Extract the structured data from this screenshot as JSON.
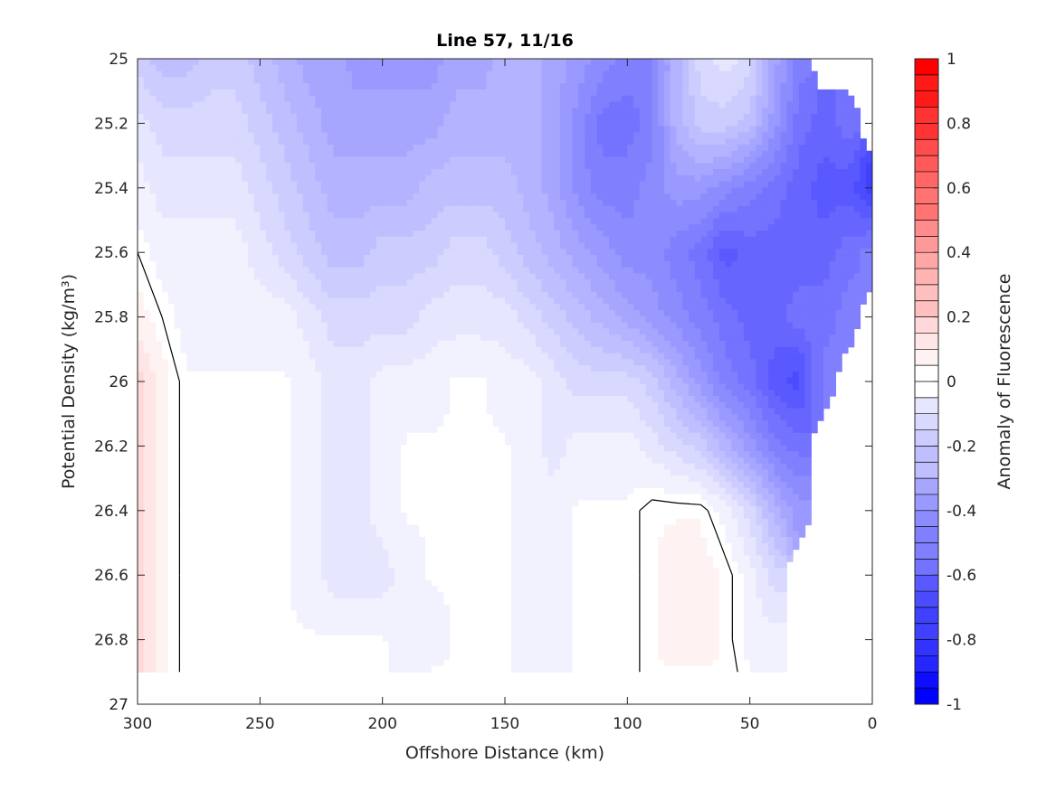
{
  "chart_data": {
    "type": "heatmap",
    "subtype": "filled-contour",
    "title": "Line 57, 11/16",
    "xlabel": "Offshore Distance (km)",
    "ylabel": "Potential Density (kg/m³)",
    "colorbar_label": "Anomaly of Fluorescence",
    "xlim": [
      300,
      0
    ],
    "x_reversed": true,
    "ylim": [
      27,
      25
    ],
    "y_reversed": true,
    "xticks": [
      300,
      250,
      200,
      150,
      100,
      50,
      0
    ],
    "yticks": [
      25,
      25.2,
      25.4,
      25.6,
      25.8,
      26,
      26.2,
      26.4,
      26.6,
      26.8,
      27
    ],
    "xtick_labels": [
      "300",
      "250",
      "200",
      "150",
      "100",
      "50",
      "0"
    ],
    "ytick_labels": [
      "25",
      "25.2",
      "25.4",
      "25.6",
      "25.8",
      "26",
      "26.2",
      "26.4",
      "26.6",
      "26.8",
      "27"
    ],
    "clim": [
      -1,
      1
    ],
    "colorbar_ticks": [
      1,
      0.8,
      0.6,
      0.4,
      0.2,
      0,
      -0.2,
      -0.4,
      -0.6,
      -0.8,
      -1
    ],
    "colorbar_tick_labels": [
      "1",
      "0.8",
      "0.6",
      "0.4",
      "0.2",
      "0",
      "-0.2",
      "-0.4",
      "-0.6",
      "-0.8",
      "-1"
    ],
    "colormap": "blue-white-red",
    "colors": {
      "negative": "#0000ff",
      "zero": "#ffffff",
      "positive": "#ff0000"
    },
    "contour_levels_step": 0.05,
    "zero_contour_color": "#000000",
    "x": [
      300,
      290,
      280,
      270,
      260,
      250,
      240,
      230,
      220,
      210,
      200,
      190,
      180,
      170,
      160,
      150,
      140,
      130,
      120,
      110,
      100,
      90,
      80,
      70,
      60,
      50,
      40,
      30,
      20,
      10,
      0
    ],
    "y": [
      25,
      25.2,
      25.4,
      25.6,
      25.8,
      26,
      26.2,
      26.4,
      26.6,
      26.8,
      26.9
    ],
    "z": [
      [
        -0.2,
        -0.25,
        -0.25,
        -0.2,
        -0.2,
        -0.25,
        -0.3,
        -0.35,
        -0.35,
        -0.4,
        -0.4,
        -0.4,
        -0.4,
        -0.35,
        -0.35,
        -0.3,
        -0.3,
        -0.35,
        -0.4,
        -0.45,
        -0.5,
        -0.5,
        -0.3,
        -0.15,
        -0.1,
        -0.15,
        -0.35,
        -0.5,
        null,
        null,
        null
      ],
      [
        -0.1,
        -0.15,
        -0.15,
        -0.15,
        -0.15,
        -0.2,
        -0.25,
        -0.3,
        -0.35,
        -0.35,
        -0.35,
        -0.35,
        -0.35,
        -0.3,
        -0.3,
        -0.3,
        -0.3,
        -0.35,
        -0.45,
        -0.55,
        -0.55,
        -0.5,
        -0.3,
        -0.2,
        -0.2,
        -0.25,
        -0.4,
        -0.55,
        -0.6,
        -0.55,
        null
      ],
      [
        -0.05,
        -0.1,
        -0.1,
        -0.1,
        -0.1,
        -0.15,
        -0.2,
        -0.25,
        -0.3,
        -0.3,
        -0.3,
        -0.3,
        -0.25,
        -0.25,
        -0.25,
        -0.25,
        -0.3,
        -0.35,
        -0.45,
        -0.5,
        -0.5,
        -0.45,
        -0.4,
        -0.4,
        -0.45,
        -0.5,
        -0.55,
        -0.6,
        -0.65,
        -0.65,
        -0.75
      ],
      [
        0.0,
        -0.05,
        -0.05,
        -0.05,
        -0.05,
        -0.1,
        -0.15,
        -0.2,
        -0.25,
        -0.25,
        -0.2,
        -0.2,
        -0.2,
        -0.15,
        -0.15,
        -0.2,
        -0.25,
        -0.3,
        -0.35,
        -0.4,
        -0.45,
        -0.45,
        -0.5,
        -0.55,
        -0.65,
        -0.6,
        -0.6,
        -0.6,
        -0.6,
        -0.55,
        -0.5
      ],
      [
        0.05,
        0.0,
        -0.05,
        -0.05,
        -0.05,
        -0.05,
        -0.05,
        -0.1,
        -0.15,
        -0.15,
        -0.15,
        -0.15,
        -0.1,
        -0.1,
        -0.1,
        -0.1,
        -0.15,
        -0.2,
        -0.25,
        -0.3,
        -0.35,
        -0.4,
        -0.45,
        -0.5,
        -0.55,
        -0.6,
        -0.6,
        -0.55,
        -0.55,
        -0.5,
        null
      ],
      [
        0.15,
        0.05,
        -0.02,
        -0.02,
        -0.02,
        -0.02,
        -0.02,
        -0.05,
        -0.1,
        -0.1,
        -0.05,
        -0.05,
        -0.05,
        -0.02,
        -0.02,
        -0.05,
        -0.05,
        -0.1,
        -0.15,
        -0.15,
        -0.15,
        -0.2,
        -0.3,
        -0.4,
        -0.5,
        -0.55,
        -0.65,
        -0.7,
        -0.5,
        null,
        null
      ],
      [
        0.15,
        0.05,
        -0.02,
        -0.02,
        -0.02,
        -0.02,
        -0.02,
        -0.05,
        -0.1,
        -0.1,
        -0.05,
        -0.02,
        -0.02,
        -0.02,
        -0.02,
        -0.02,
        -0.05,
        -0.1,
        -0.05,
        -0.05,
        -0.05,
        -0.1,
        -0.15,
        -0.2,
        -0.3,
        -0.4,
        -0.5,
        -0.55,
        null,
        null,
        null
      ],
      [
        0.15,
        0.05,
        -0.02,
        -0.02,
        -0.02,
        -0.02,
        -0.02,
        -0.05,
        -0.1,
        -0.1,
        -0.05,
        -0.02,
        -0.02,
        -0.02,
        -0.02,
        -0.02,
        -0.05,
        -0.05,
        -0.02,
        -0.02,
        -0.02,
        0.02,
        0.02,
        0.02,
        -0.05,
        -0.15,
        -0.3,
        -0.4,
        null,
        null,
        null
      ],
      [
        0.15,
        0.05,
        -0.02,
        -0.02,
        -0.02,
        -0.02,
        -0.02,
        -0.05,
        -0.1,
        -0.1,
        -0.1,
        -0.05,
        -0.02,
        -0.02,
        -0.02,
        -0.02,
        -0.05,
        -0.05,
        -0.02,
        -0.02,
        -0.02,
        0.02,
        0.05,
        0.05,
        0.02,
        -0.05,
        -0.15,
        null,
        null,
        null,
        null
      ],
      [
        0.15,
        0.05,
        -0.02,
        -0.02,
        -0.02,
        -0.02,
        -0.02,
        -0.02,
        -0.02,
        -0.02,
        -0.02,
        -0.05,
        -0.05,
        -0.02,
        -0.02,
        -0.02,
        -0.05,
        -0.05,
        -0.02,
        -0.02,
        -0.02,
        0.02,
        0.05,
        0.05,
        0.02,
        -0.05,
        -0.05,
        null,
        null,
        null,
        null
      ],
      [
        0.15,
        0.05,
        -0.02,
        -0.02,
        -0.02,
        -0.02,
        -0.02,
        -0.02,
        -0.02,
        -0.02,
        -0.02,
        -0.05,
        -0.02,
        -0.02,
        -0.02,
        -0.02,
        -0.05,
        -0.05,
        -0.02,
        -0.02,
        -0.02,
        0.02,
        0.02,
        0.02,
        0.02,
        -0.02,
        -0.05,
        null,
        null,
        null,
        null
      ]
    ]
  }
}
